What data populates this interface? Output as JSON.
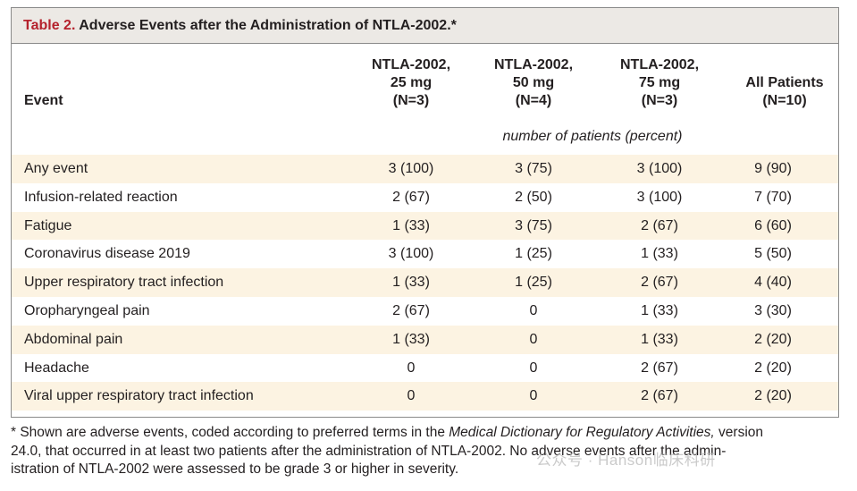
{
  "table": {
    "title_num": "Table 2.",
    "title_text": "Adverse Events after the Administration of NTLA-2002.*",
    "headers": {
      "event": "Event",
      "col1": [
        "NTLA-2002,",
        "25 mg",
        "(N=3)"
      ],
      "col2": [
        "NTLA-2002,",
        "50 mg",
        "(N=4)"
      ],
      "col3": [
        "NTLA-2002,",
        "75 mg",
        "(N=3)"
      ],
      "col4": [
        "All Patients",
        "(N=10)"
      ]
    },
    "units": "number of patients (percent)",
    "rows": [
      {
        "event": "Any event",
        "c1": "3 (100)",
        "c2": "3 (75)",
        "c3": "3 (100)",
        "c4": "9 (90)"
      },
      {
        "event": "Infusion-related reaction",
        "c1": "2 (67)",
        "c2": "2 (50)",
        "c3": "3 (100)",
        "c4": "7 (70)"
      },
      {
        "event": "Fatigue",
        "c1": "1 (33)",
        "c2": "3 (75)",
        "c3": "2 (67)",
        "c4": "6 (60)"
      },
      {
        "event": "Coronavirus disease 2019",
        "c1": "3 (100)",
        "c2": "1 (25)",
        "c3": "1 (33)",
        "c4": "5 (50)"
      },
      {
        "event": "Upper respiratory tract infection",
        "c1": "1 (33)",
        "c2": "1 (25)",
        "c3": "2 (67)",
        "c4": "4 (40)"
      },
      {
        "event": "Oropharyngeal pain",
        "c1": "2 (67)",
        "c2": "0",
        "c3": "1 (33)",
        "c4": "3 (30)"
      },
      {
        "event": "Abdominal pain",
        "c1": "1 (33)",
        "c2": "0",
        "c3": "1 (33)",
        "c4": "2 (20)"
      },
      {
        "event": "Headache",
        "c1": "0",
        "c2": "0",
        "c3": "2 (67)",
        "c4": "2 (20)"
      },
      {
        "event": "Viral upper respiratory tract infection",
        "c1": "0",
        "c2": "0",
        "c3": "2 (67)",
        "c4": "2 (20)"
      }
    ]
  },
  "footnote": {
    "prefix": "* Shown are adverse events, coded according to preferred terms in the ",
    "italic": "Medical Dictionary for Regulatory Activities,",
    "line1_rest": " version",
    "line2": "24.0, that occurred in at least two patients after the administration of NTLA-2002. No adverse events after the admin-",
    "line3": "istration of NTLA-2002 were assessed to be grade 3 or higher in severity."
  },
  "watermark": "公众号 · Hanson临床科研",
  "colors": {
    "title_red": "#b5222d",
    "title_bg": "#ece9e5",
    "row_shade": "#fcf3e2"
  }
}
